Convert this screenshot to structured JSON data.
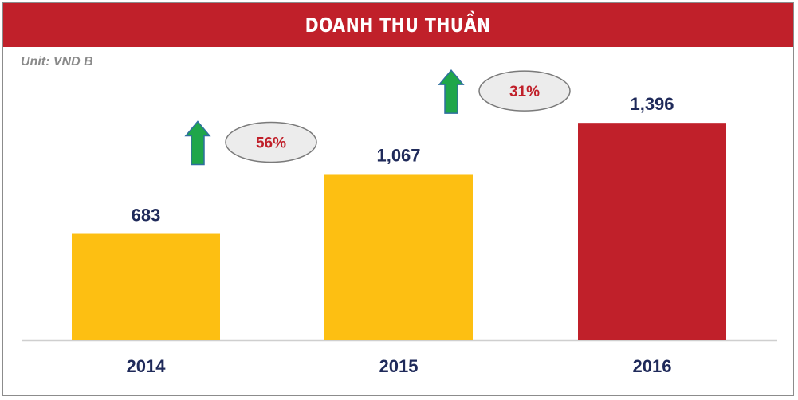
{
  "header": {
    "title": "DOANH THU THUẦN"
  },
  "unit": "Unit: VND B",
  "chart_data": {
    "type": "bar",
    "title": "DOANH THU THUẦN",
    "xlabel": "",
    "ylabel": "",
    "categories": [
      "2014",
      "2015",
      "2016"
    ],
    "values": [
      683,
      1067,
      1396
    ],
    "value_labels": [
      "683",
      "1,067",
      "1,396"
    ],
    "ylim": [
      0,
      1750
    ],
    "grid": false,
    "growth": [
      {
        "from": "2014",
        "to": "2015",
        "label": "56%"
      },
      {
        "from": "2015",
        "to": "2016",
        "label": "31%"
      }
    ]
  },
  "colors": {
    "title_bg": "#c0202a",
    "bar_default": "#fdbf12",
    "bar_highlight": "#c0202a",
    "arrow": "#1fa64a",
    "arrow_outline": "#2f6f9f",
    "value_text": "#1f2a5a",
    "growth_text": "#c0202a"
  }
}
